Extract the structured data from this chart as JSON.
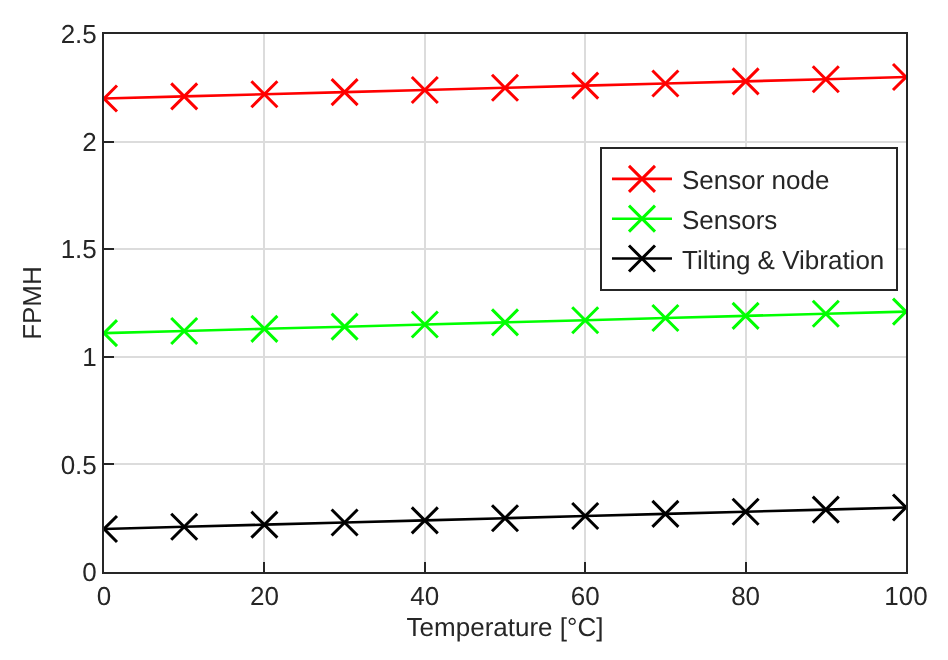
{
  "chart_data": {
    "type": "line",
    "xlabel": "Temperature [°C]",
    "ylabel": "FPMH",
    "x": [
      0,
      10,
      20,
      30,
      40,
      50,
      60,
      70,
      80,
      90,
      100
    ],
    "series": [
      {
        "name": "Sensor node",
        "color": "#ff0000",
        "values": [
          2.2,
          2.21,
          2.22,
          2.23,
          2.24,
          2.25,
          2.26,
          2.27,
          2.28,
          2.29,
          2.3
        ]
      },
      {
        "name": "Sensors",
        "color": "#00ff00",
        "values": [
          1.11,
          1.12,
          1.13,
          1.14,
          1.15,
          1.16,
          1.17,
          1.18,
          1.19,
          1.2,
          1.21
        ]
      },
      {
        "name": "Tilting & Vibration",
        "color": "#000000",
        "values": [
          0.2,
          0.21,
          0.22,
          0.23,
          0.24,
          0.25,
          0.26,
          0.27,
          0.28,
          0.29,
          0.3
        ]
      }
    ],
    "xlim": [
      0,
      100
    ],
    "xticks": [
      0,
      20,
      40,
      60,
      80,
      100
    ],
    "ylim": [
      0,
      2.5
    ],
    "yticks": [
      0,
      0.5,
      1,
      1.5,
      2,
      2.5
    ],
    "grid": true,
    "legend": "top right",
    "marker": "cross",
    "line_style": "solid"
  }
}
